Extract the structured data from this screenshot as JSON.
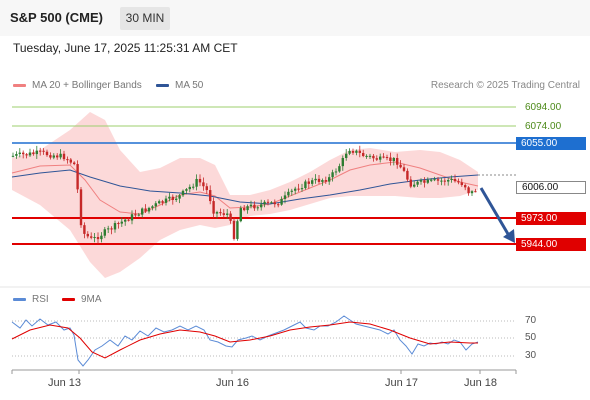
{
  "header": {
    "symbol": "S&P 500 (CME)",
    "timeframe": "30 MIN"
  },
  "timestamp": "Tuesday, June 17, 2025 11:25:31 AM CET",
  "legend": {
    "bollinger": {
      "label": "MA 20 + Bollinger Bands",
      "color": "#f08080"
    },
    "ma50": {
      "label": "MA 50",
      "color": "#2f5597"
    }
  },
  "copyright": "Research © 2025 Trading Central",
  "price_levels": [
    {
      "value": "6094.00",
      "kind": "target",
      "color": "#8dc45a"
    },
    {
      "value": "6074.00",
      "kind": "target",
      "color": "#8dc45a"
    },
    {
      "value": "6055.00",
      "kind": "pivot",
      "color": "#1e6fd0"
    },
    {
      "value": "6006.00",
      "kind": "last"
    },
    {
      "value": "5973.00",
      "kind": "support",
      "color": "#e00000"
    },
    {
      "value": "5944.00",
      "kind": "support",
      "color": "#e00000"
    }
  ],
  "rsi": {
    "legend": {
      "rsi": "RSI",
      "ma": "9MA"
    },
    "rsi_color": "#5b8bd6",
    "ma_color": "#e00000",
    "ticks": [
      "70",
      "50",
      "30"
    ]
  },
  "x_axis": {
    "labels": [
      "Jun 13",
      "Jun 16",
      "Jun 17",
      "Jun 18"
    ]
  },
  "icons": {
    "arrow": "down-arrow-icon"
  }
}
